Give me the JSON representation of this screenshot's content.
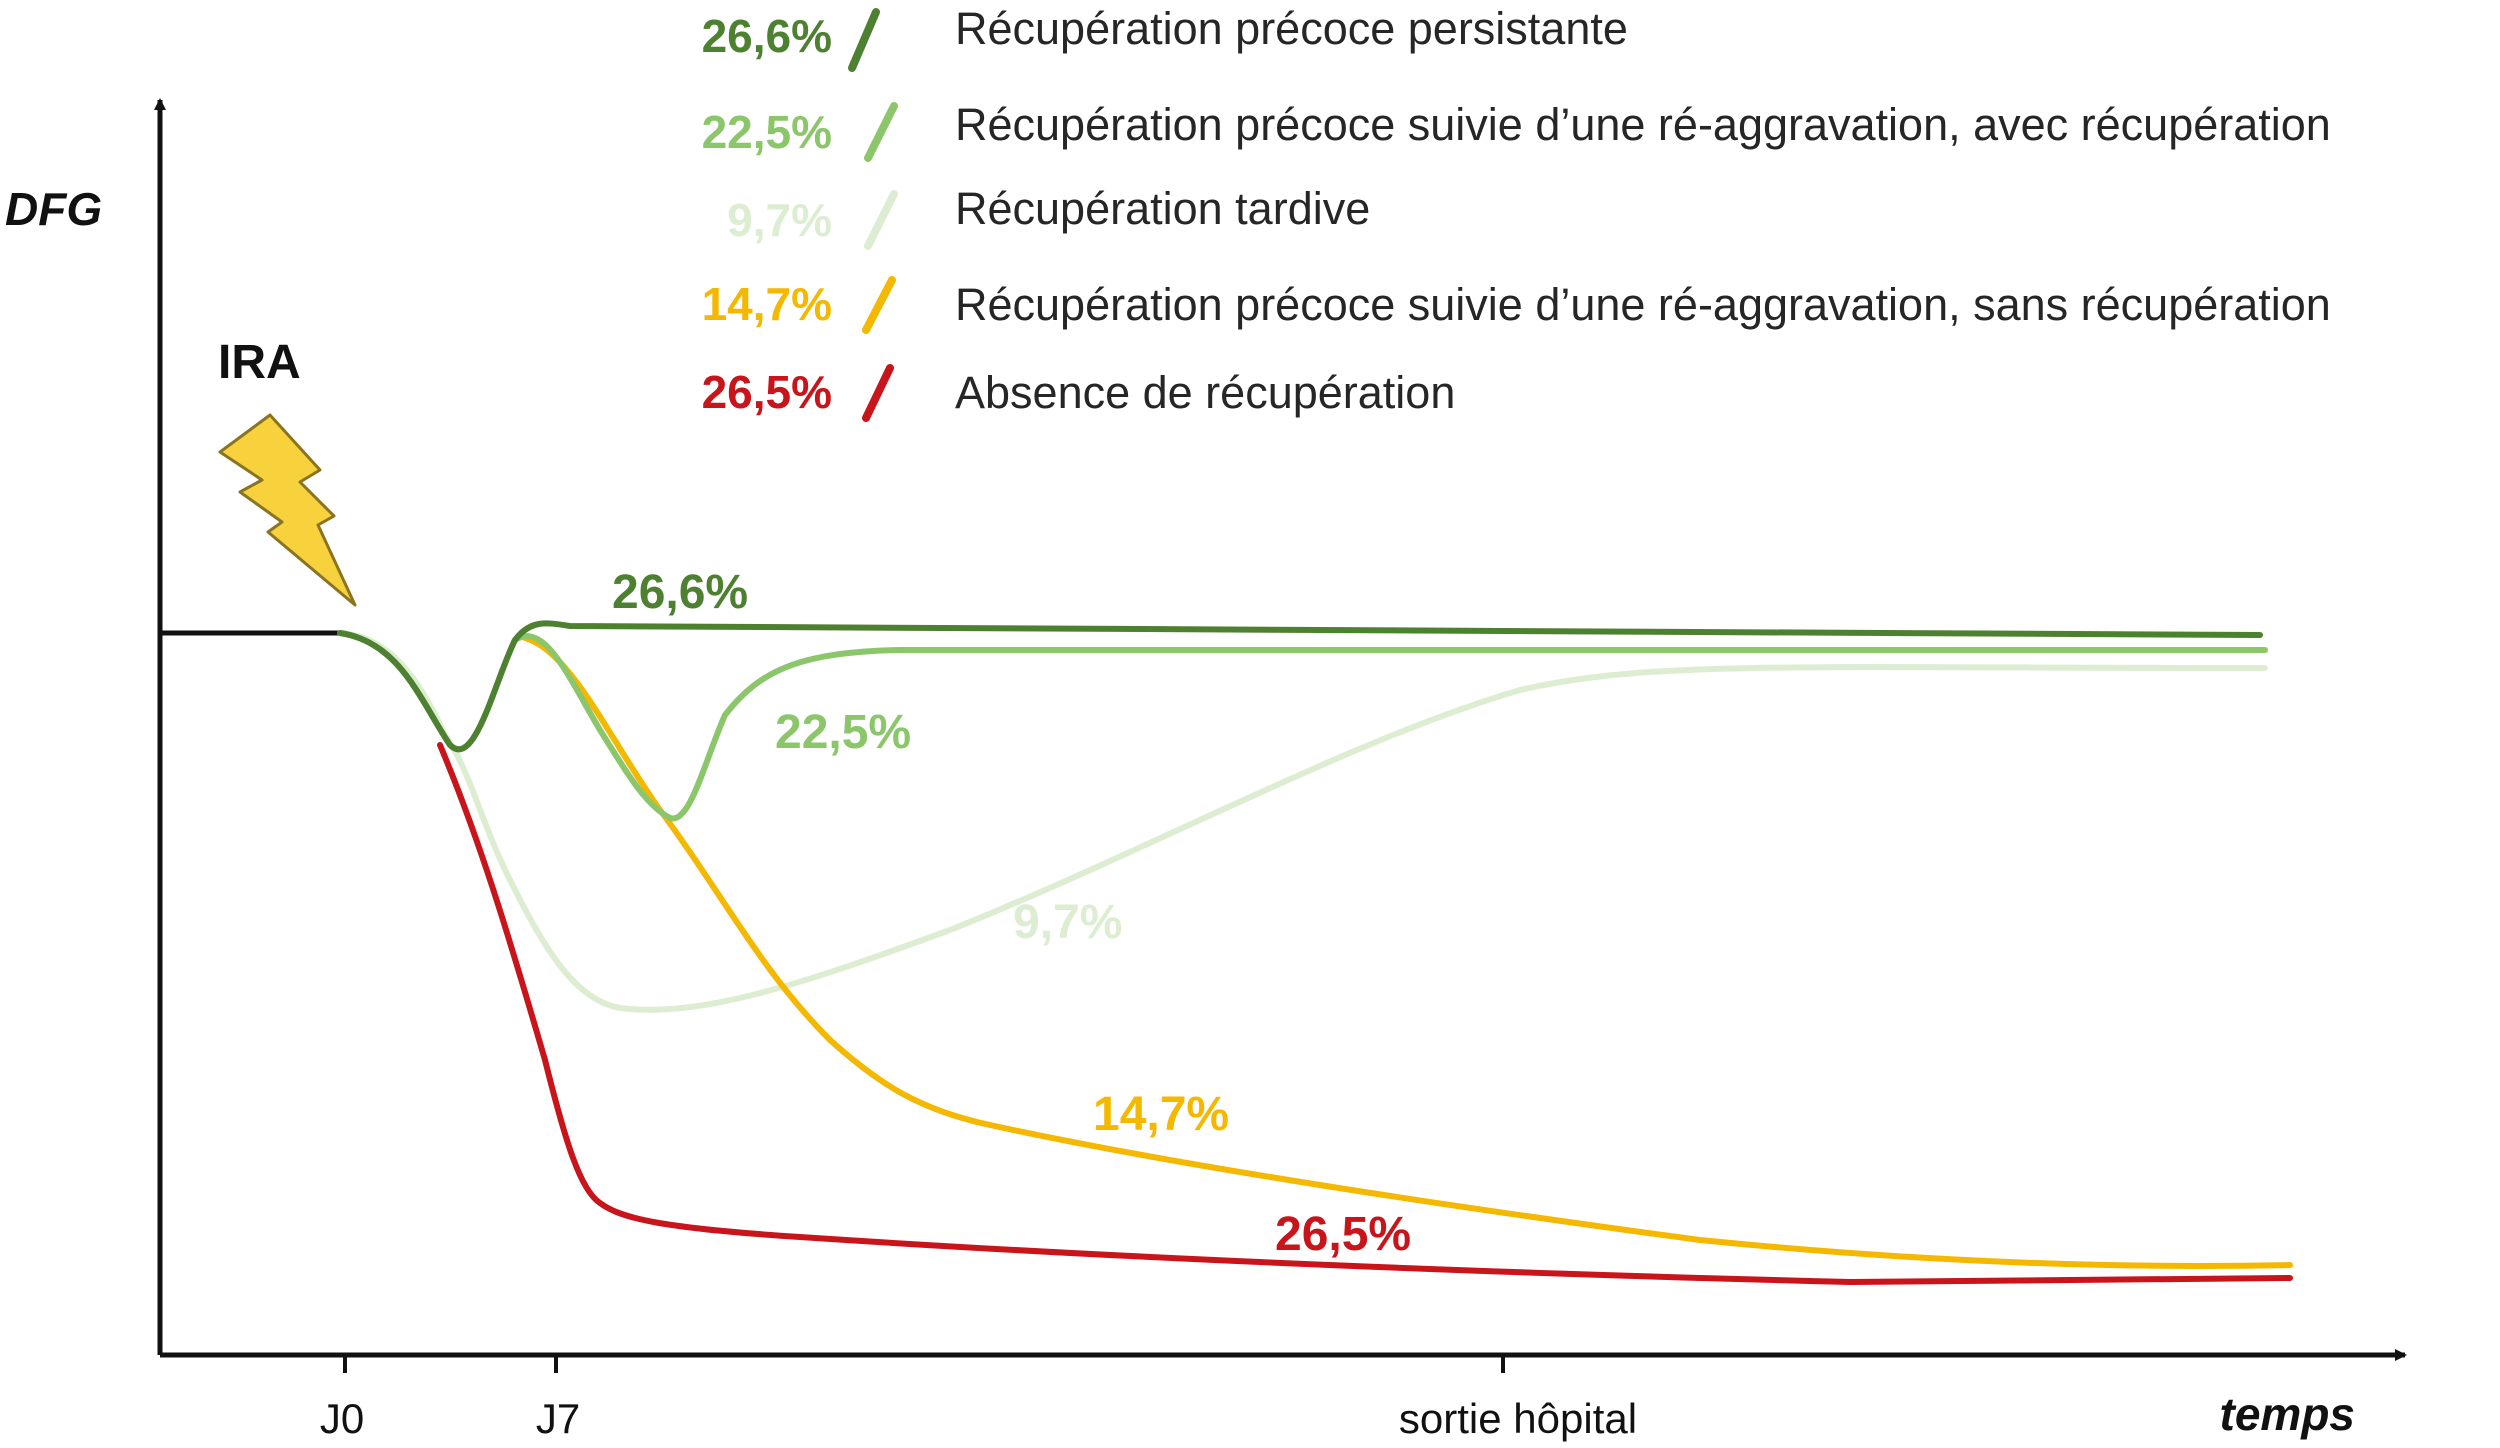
{
  "axes": {
    "y_label": "DFG",
    "x_label": "temps",
    "x_ticks": [
      "J0",
      "J7",
      "sortie hôpital"
    ]
  },
  "event": {
    "label": "IRA",
    "icon": "lightning-bolt-icon",
    "icon_color": "#F7D23C"
  },
  "legend": [
    {
      "pct": "26,6%",
      "label": "Récupération précoce persistante",
      "color": "#4E8031"
    },
    {
      "pct": "22,5%",
      "label": "Récupération précoce suivie d’une ré-aggravation, avec récupération",
      "color": "#8CC66B"
    },
    {
      "pct": "9,7%",
      "label": "Récupération tardive",
      "color": "#DDEDD2"
    },
    {
      "pct": "14,7%",
      "label": "Récupération précoce suivie d’une ré-aggravation, sans récupération",
      "color": "#F5B800"
    },
    {
      "pct": "26,5%",
      "label": "Absence de récupération",
      "color": "#C8141B"
    }
  ],
  "curve_labels": {
    "persistent": "26,6%",
    "reaggravation_recovery": "22,5%",
    "late": "9,7%",
    "reaggravation_no_recovery": "14,7%",
    "no_recovery": "26,5%"
  },
  "colors": {
    "baseline": "#111111",
    "axis": "#111111"
  }
}
